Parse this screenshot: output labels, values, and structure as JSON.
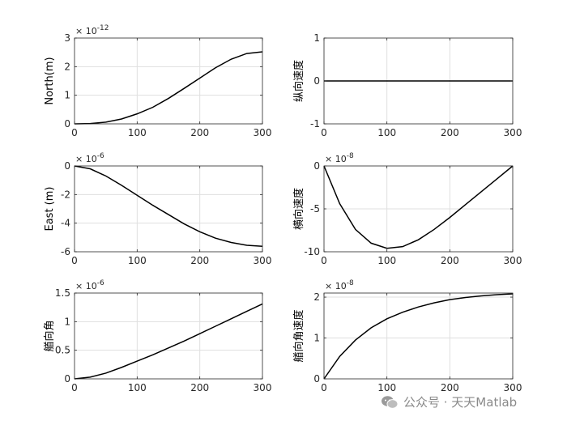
{
  "chart_data": [
    {
      "type": "line",
      "ylabel": "North(m)",
      "exponent": "× 10^-12",
      "exponent_base": "× 10",
      "exponent_power": "-12",
      "xlim": [
        0,
        300
      ],
      "ylim": [
        0,
        3
      ],
      "xticks": [
        0,
        100,
        200,
        300
      ],
      "yticks": [
        0,
        1,
        2,
        3
      ],
      "grid": true,
      "series": [
        {
          "x": [
            0,
            25,
            50,
            75,
            100,
            125,
            150,
            175,
            200,
            225,
            250,
            275,
            300
          ],
          "values": [
            0,
            0.01,
            0.06,
            0.17,
            0.35,
            0.58,
            0.89,
            1.24,
            1.6,
            1.96,
            2.26,
            2.46,
            2.52
          ]
        }
      ]
    },
    {
      "type": "line",
      "ylabel": "纵向速度",
      "exponent": "",
      "xlim": [
        0,
        300
      ],
      "ylim": [
        -1,
        1
      ],
      "xticks": [
        0,
        100,
        200,
        300
      ],
      "yticks": [
        -1,
        0,
        1
      ],
      "grid": true,
      "series": [
        {
          "x": [
            0,
            300
          ],
          "values": [
            0,
            0
          ]
        }
      ]
    },
    {
      "type": "line",
      "ylabel": "East (m)",
      "exponent": "× 10^-6",
      "exponent_base": "× 10",
      "exponent_power": "-6",
      "xlim": [
        0,
        300
      ],
      "ylim": [
        -6,
        0
      ],
      "xticks": [
        0,
        100,
        200,
        300
      ],
      "yticks": [
        -6,
        -4,
        -2,
        0
      ],
      "grid": true,
      "series": [
        {
          "x": [
            0,
            25,
            50,
            75,
            100,
            125,
            150,
            175,
            200,
            225,
            250,
            275,
            300
          ],
          "values": [
            0,
            -0.2,
            -0.7,
            -1.35,
            -2.05,
            -2.75,
            -3.4,
            -4.05,
            -4.6,
            -5.05,
            -5.35,
            -5.55,
            -5.62
          ]
        }
      ]
    },
    {
      "type": "line",
      "ylabel": "横向速度",
      "exponent": "× 10^-8",
      "exponent_base": "× 10",
      "exponent_power": "-8",
      "xlim": [
        0,
        300
      ],
      "ylim": [
        -10,
        0
      ],
      "xticks": [
        0,
        100,
        200,
        300
      ],
      "yticks": [
        -10,
        -5,
        0
      ],
      "grid": true,
      "series": [
        {
          "x": [
            0,
            25,
            50,
            75,
            100,
            125,
            150,
            175,
            200,
            225,
            250,
            275,
            300
          ],
          "values": [
            0,
            -4.4,
            -7.4,
            -9.0,
            -9.6,
            -9.4,
            -8.6,
            -7.4,
            -6.0,
            -4.5,
            -3.0,
            -1.5,
            0
          ]
        }
      ]
    },
    {
      "type": "line",
      "ylabel": "艏向角",
      "exponent": "× 10^-6",
      "exponent_base": "× 10",
      "exponent_power": "-6",
      "xlim": [
        0,
        300
      ],
      "ylim": [
        0,
        1.5
      ],
      "xticks": [
        0,
        100,
        200,
        300
      ],
      "yticks": [
        0,
        0.5,
        1,
        1.5
      ],
      "ytick_labels": [
        "0",
        "0.5",
        "1",
        "1.5"
      ],
      "grid": true,
      "series": [
        {
          "x": [
            0,
            25,
            50,
            75,
            100,
            125,
            150,
            175,
            200,
            225,
            250,
            275,
            300
          ],
          "values": [
            0,
            0.03,
            0.1,
            0.2,
            0.31,
            0.42,
            0.54,
            0.66,
            0.79,
            0.92,
            1.05,
            1.18,
            1.31
          ]
        }
      ]
    },
    {
      "type": "line",
      "ylabel": "艏向角速度",
      "exponent": "× 10^-8",
      "exponent_base": "× 10",
      "exponent_power": "-8",
      "xlim": [
        0,
        300
      ],
      "ylim": [
        0,
        2.1
      ],
      "xticks": [
        0,
        100,
        200,
        300
      ],
      "yticks": [
        0,
        1,
        2
      ],
      "grid": true,
      "series": [
        {
          "x": [
            0,
            25,
            50,
            75,
            100,
            125,
            150,
            175,
            200,
            225,
            250,
            275,
            300
          ],
          "values": [
            0,
            0.55,
            0.95,
            1.25,
            1.47,
            1.63,
            1.76,
            1.86,
            1.94,
            1.99,
            2.03,
            2.06,
            2.08
          ]
        }
      ]
    }
  ],
  "watermark": {
    "text": "公众号 · 天天Matlab",
    "icon": "wechat-icon"
  },
  "colors": {
    "line": "#000000",
    "grid": "#dfdfdf",
    "axis": "#262626"
  }
}
